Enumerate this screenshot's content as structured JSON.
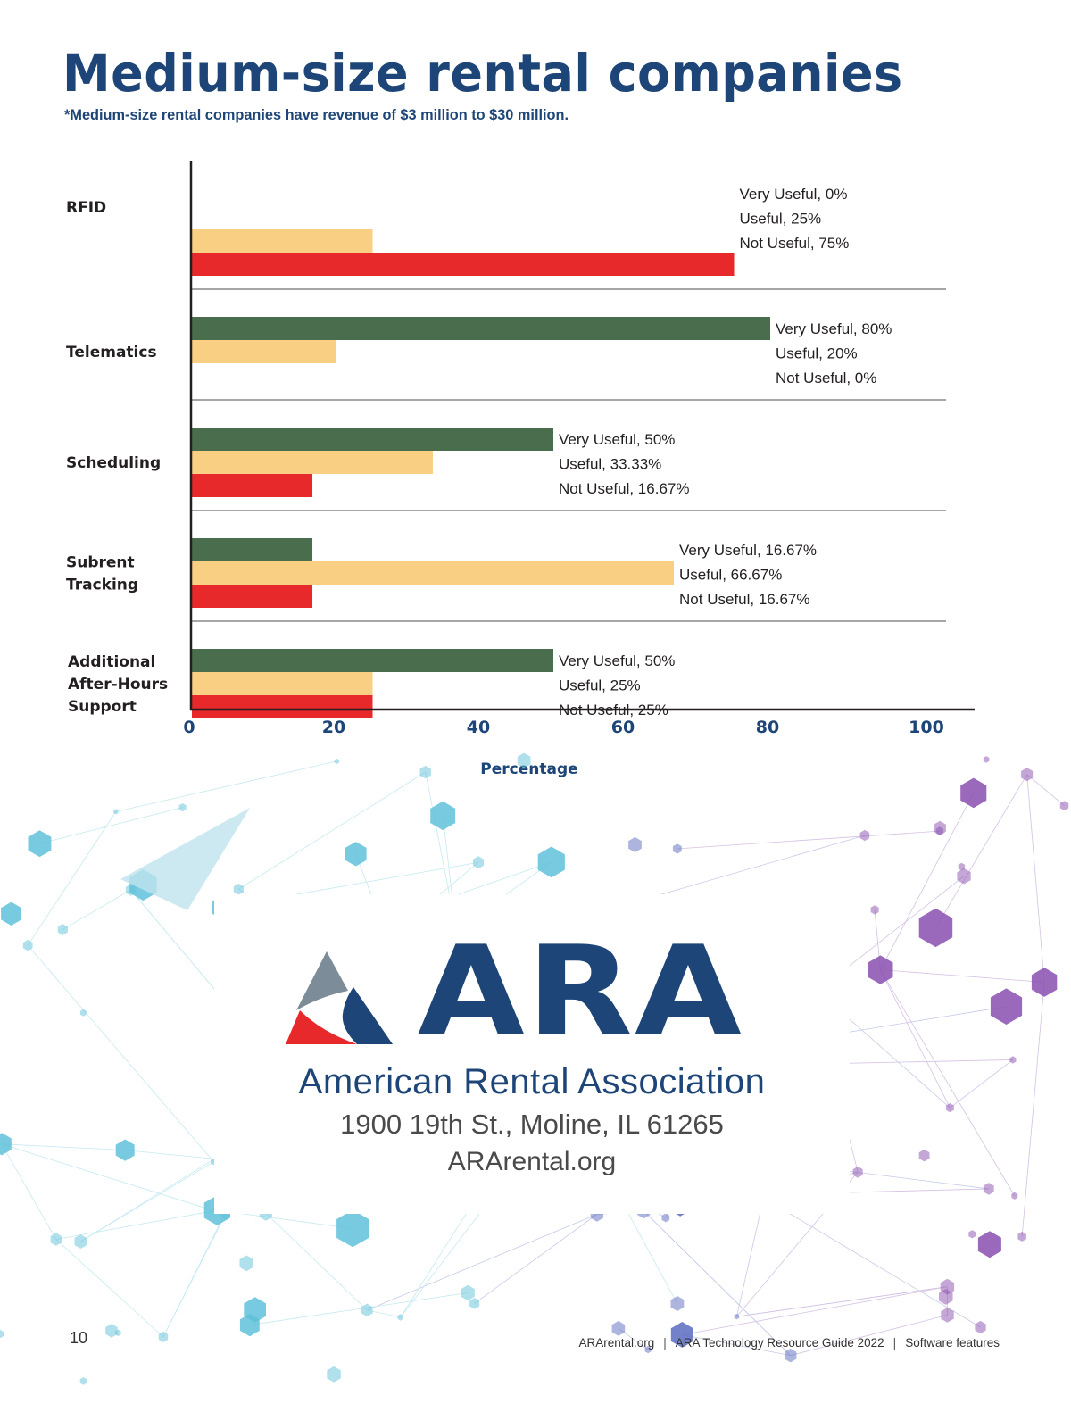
{
  "page": {
    "title": "Medium-size rental companies",
    "subtitle": "*Medium-size rental companies have revenue of $3 million to $30 million.",
    "page_number": "10"
  },
  "colors": {
    "very_useful": "#4a6e4d",
    "useful": "#f9cf84",
    "not_useful": "#e8292c",
    "brand_blue": "#1d4578",
    "brand_gray": "#7d8c99",
    "brand_red": "#e8292c"
  },
  "chart_data": {
    "type": "bar",
    "orientation": "horizontal",
    "title": "",
    "xlabel": "Percentage",
    "ylabel": "",
    "xlim": [
      0,
      100
    ],
    "xticks": [
      0,
      20,
      40,
      60,
      80,
      100
    ],
    "grid": false,
    "categories": [
      "RFID",
      "Telematics",
      "Scheduling",
      "Subrent Tracking",
      "Additional After-Hours Support"
    ],
    "category_lines": [
      [
        "RFID"
      ],
      [
        "Telematics"
      ],
      [
        "Scheduling"
      ],
      [
        "Subrent",
        "Tracking"
      ],
      [
        "Additional",
        "After-Hours",
        "Support"
      ]
    ],
    "series": [
      {
        "name": "Very Useful",
        "values": [
          0,
          80,
          50,
          16.67,
          50
        ]
      },
      {
        "name": "Useful",
        "values": [
          25,
          20,
          33.33,
          66.67,
          25
        ]
      },
      {
        "name": "Not Useful",
        "values": [
          75,
          0,
          16.67,
          16.67,
          25
        ]
      }
    ],
    "data_labels": [
      [
        "Very Useful, 0%",
        "Useful, 25%",
        "Not Useful, 75%"
      ],
      [
        "Very Useful, 80%",
        "Useful, 20%",
        "Not Useful, 0%"
      ],
      [
        "Very Useful, 50%",
        "Useful, 33.33%",
        "Not Useful, 16.67%"
      ],
      [
        "Very Useful, 16.67%",
        "Useful, 66.67%",
        "Not Useful, 16.67%"
      ],
      [
        "Very Useful, 50%",
        "Useful, 25%",
        "Not Useful, 25%"
      ]
    ]
  },
  "logo": {
    "wordmark": "ARA",
    "name": "American Rental Association",
    "address": "1900 19th St., Moline, IL 61265",
    "url": "ARArental.org"
  },
  "footer": {
    "site": "ARArental.org",
    "publication": "ARA Technology Resource Guide 2022",
    "section": "Software features",
    "separator": "|"
  }
}
